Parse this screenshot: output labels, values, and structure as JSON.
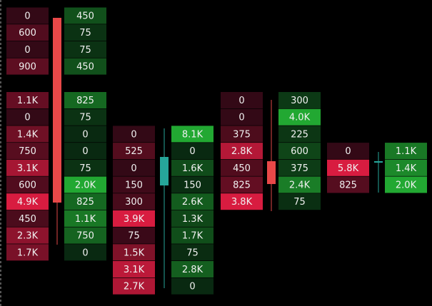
{
  "footprint": {
    "bid_color": "#d81c40",
    "ask_color": "#22a832",
    "bid_dark": "#1c0610",
    "ask_dark": "#06180c",
    "groups": [
      {
        "bid": [
          "0",
          "600",
          "0",
          "900",
          null,
          "1.1K",
          "0",
          "1.4K",
          "750",
          "3.1K",
          "600",
          "4.9K",
          "450",
          "2.3K",
          "1.7K"
        ],
        "ask": [
          "450",
          "75",
          "75",
          "450",
          null,
          "825",
          "75",
          "0",
          "0",
          "75",
          "2.0K",
          "825",
          "1.1K",
          "750",
          "0"
        ]
      },
      {
        "bid": [
          null,
          null,
          null,
          null,
          null,
          null,
          null,
          "0",
          "525",
          "0",
          "150",
          "300",
          "3.9K",
          "75",
          "1.5K",
          "3.1K",
          "2.7K"
        ],
        "ask": [
          null,
          null,
          null,
          null,
          null,
          null,
          null,
          "8.1K",
          "0",
          "1.6K",
          "150",
          "2.6K",
          "1.3K",
          "1.7K",
          "75",
          "2.8K",
          "0"
        ]
      },
      {
        "bid": [
          null,
          null,
          null,
          null,
          null,
          "0",
          "0",
          "375",
          "2.8K",
          "450",
          "825",
          "3.8K"
        ],
        "ask": [
          null,
          null,
          null,
          null,
          null,
          "300",
          "4.0K",
          "225",
          "600",
          "375",
          "2.4K",
          "75"
        ]
      },
      {
        "bid": [
          null,
          null,
          null,
          null,
          null,
          null,
          null,
          null,
          "0",
          "5.8K",
          "825"
        ],
        "ask": [
          null,
          null,
          null,
          null,
          null,
          null,
          null,
          null,
          "1.1K",
          "1.4K",
          "2.0K"
        ]
      }
    ]
  }
}
